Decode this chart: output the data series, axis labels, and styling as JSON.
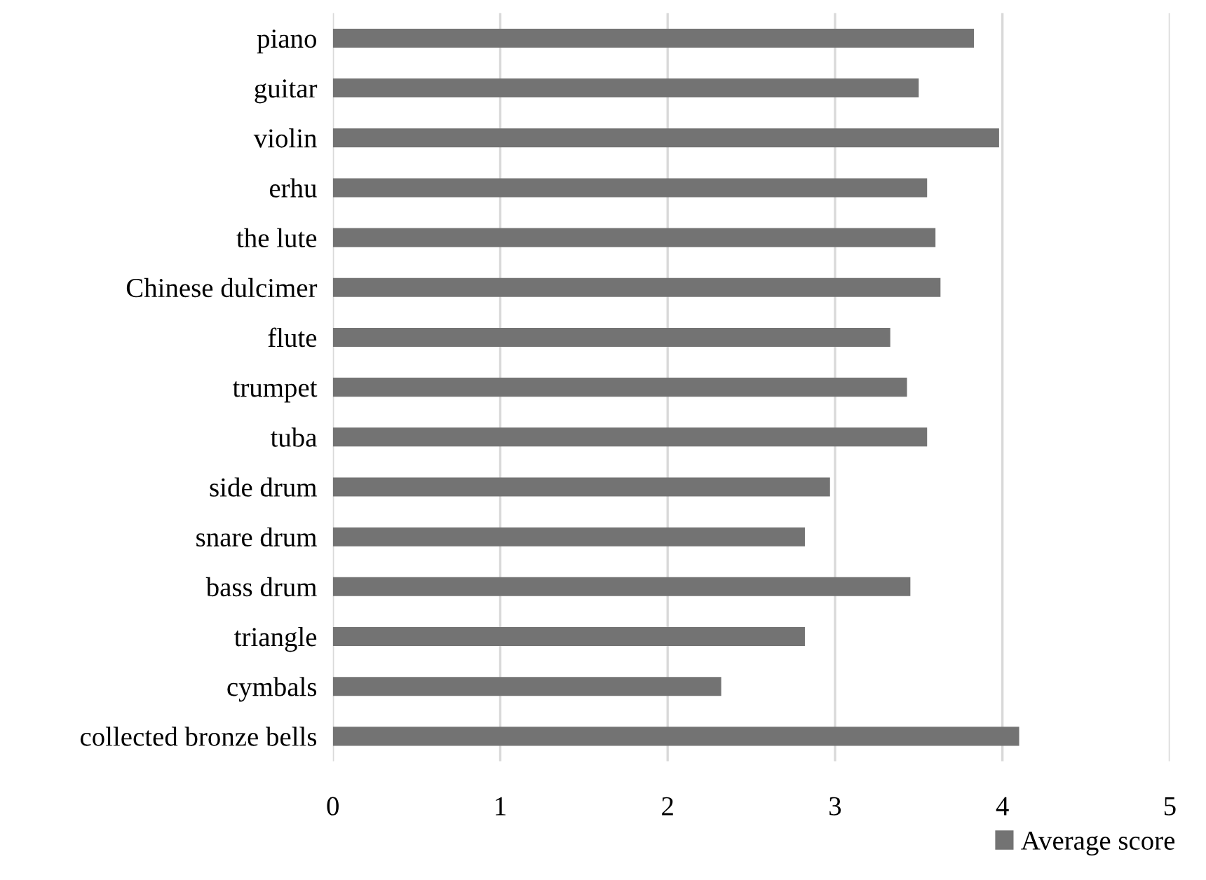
{
  "chart_data": {
    "type": "bar",
    "orientation": "horizontal",
    "categories": [
      "piano",
      "guitar",
      "violin",
      "erhu",
      "the lute",
      "Chinese dulcimer",
      "flute",
      "trumpet",
      "tuba",
      "side drum",
      "snare drum",
      "bass drum",
      "triangle",
      "cymbals",
      "collected bronze bells"
    ],
    "series": [
      {
        "name": "Average score",
        "color": "#737373",
        "values": [
          3.83,
          3.5,
          3.98,
          3.55,
          3.6,
          3.63,
          3.33,
          3.43,
          3.55,
          2.97,
          2.82,
          3.45,
          2.82,
          2.32,
          4.1
        ]
      }
    ],
    "xlim": [
      0,
      5
    ],
    "xticks": [
      0,
      1,
      2,
      3,
      4,
      5
    ],
    "grid": "x",
    "legend": "bottom right"
  }
}
